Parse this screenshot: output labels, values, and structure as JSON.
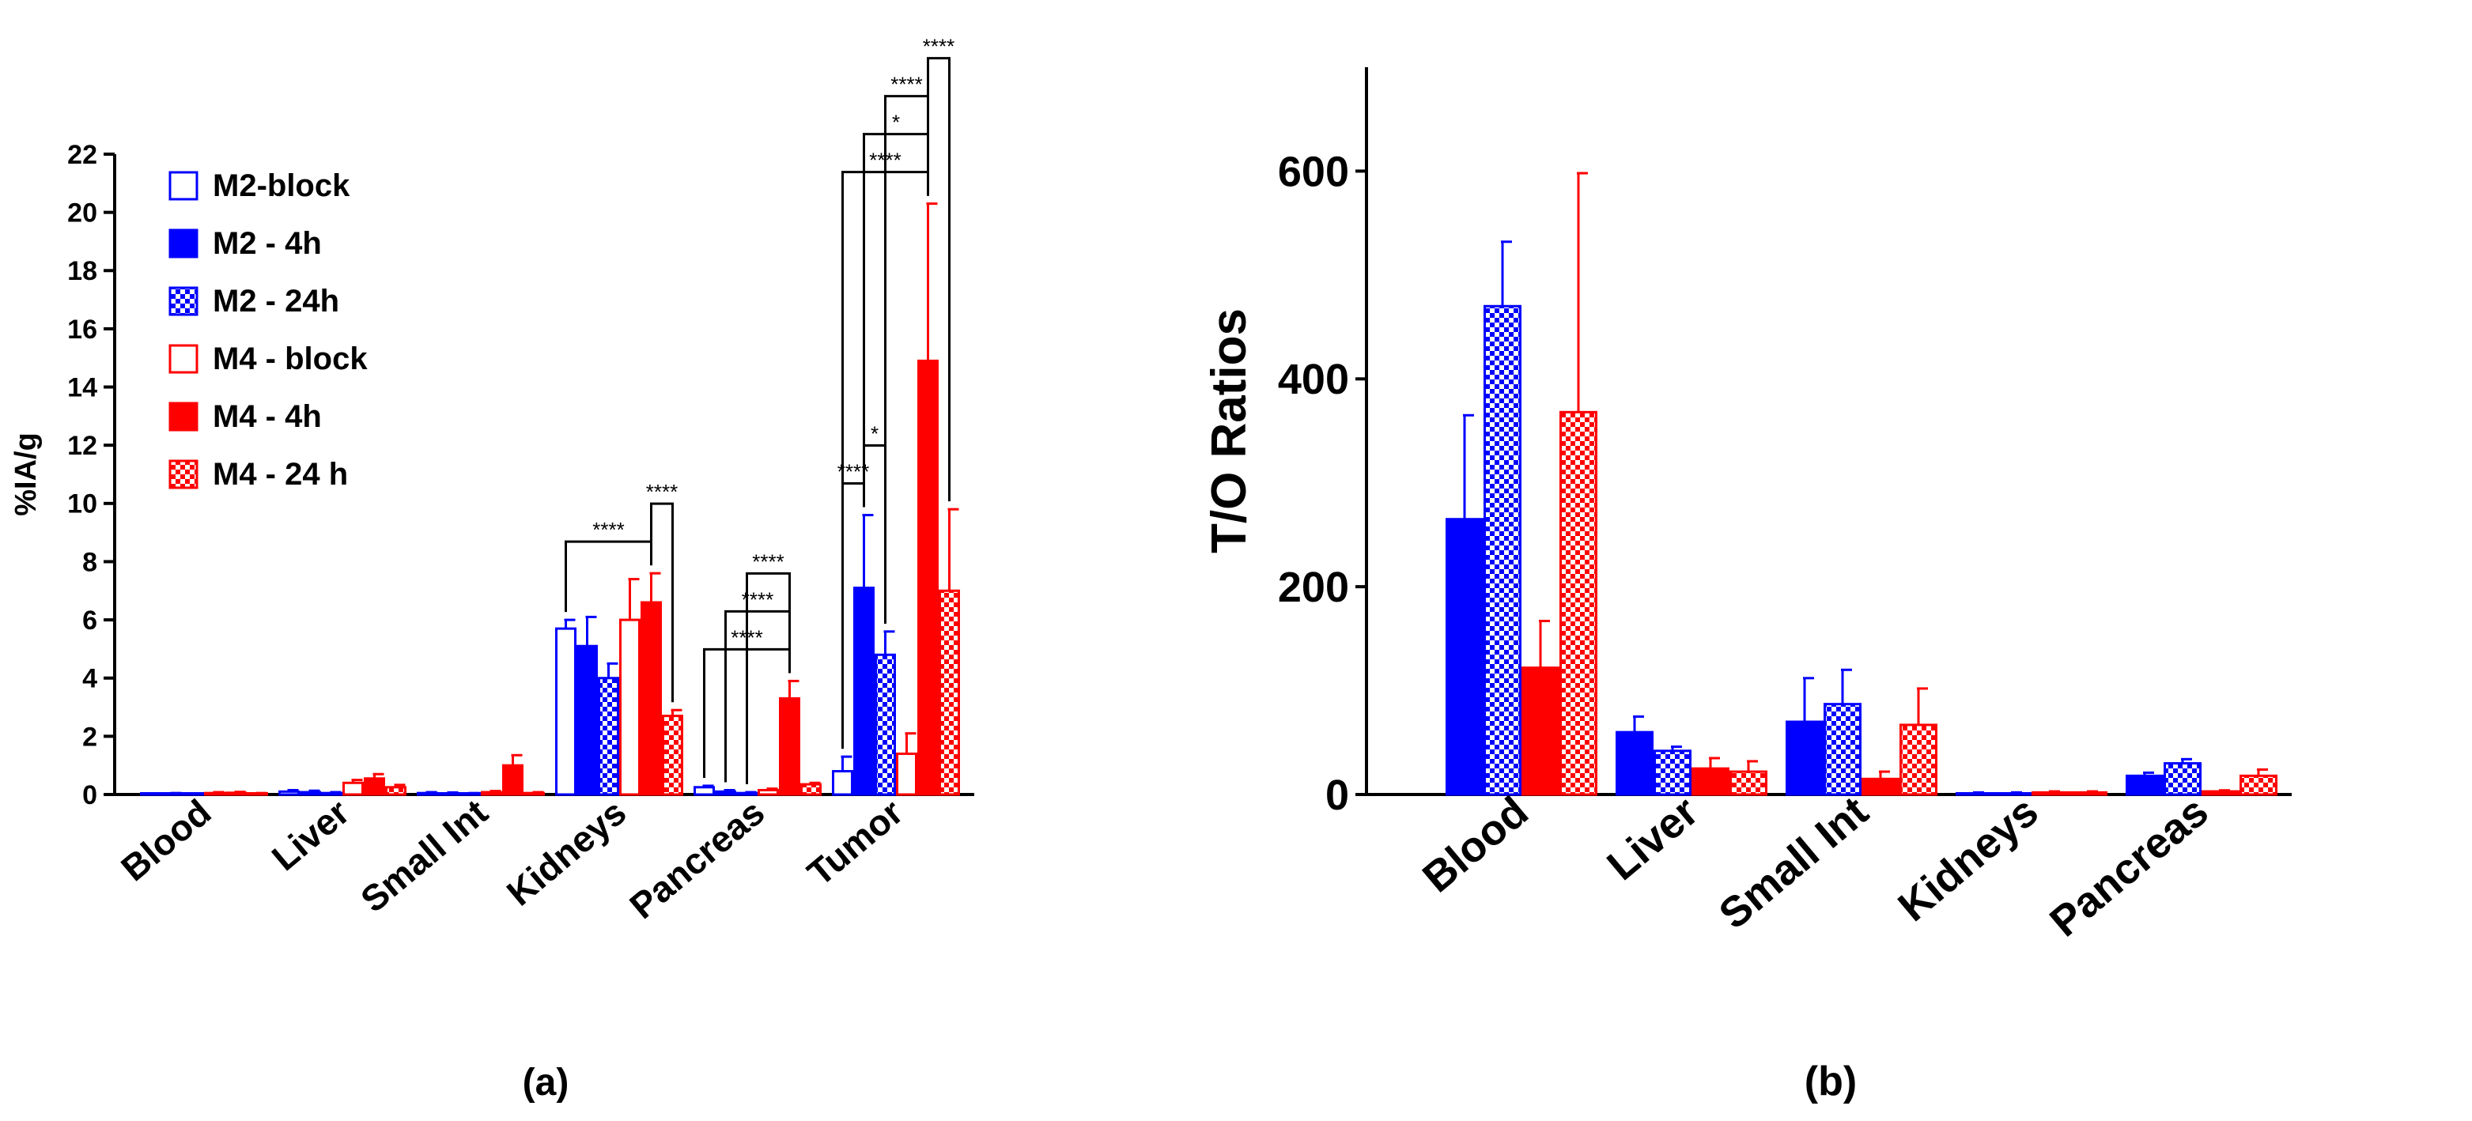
{
  "colors": {
    "blue": "#0000ff",
    "red": "#ff0000",
    "axis": "#000000"
  },
  "chart_data": [
    {
      "type": "bar",
      "panel_label": "(a)",
      "ylabel": "%IA/g",
      "ylim": [
        0,
        22
      ],
      "yticks": [
        "0",
        "2",
        "4",
        "6",
        "8",
        "10",
        "12",
        "14",
        "16",
        "18",
        "20",
        "22"
      ],
      "categories": [
        "Blood",
        "Liver",
        "Small Int",
        "Kidneys",
        "Pancreas",
        "Tumor"
      ],
      "series": [
        {
          "name": "M2-block",
          "color": "blue",
          "pattern": "open",
          "values": [
            0.02,
            0.1,
            0.05,
            5.7,
            0.25,
            0.8
          ],
          "errors": [
            0.02,
            0.05,
            0.03,
            0.3,
            0.05,
            0.5
          ]
        },
        {
          "name": "M2 - 4h",
          "color": "blue",
          "pattern": "solid",
          "values": [
            0.03,
            0.08,
            0.04,
            5.1,
            0.1,
            7.1
          ],
          "errors": [
            0.02,
            0.05,
            0.03,
            1.0,
            0.05,
            2.5
          ]
        },
        {
          "name": "M2 - 24h",
          "color": "blue",
          "pattern": "check",
          "values": [
            0.02,
            0.05,
            0.03,
            4.0,
            0.05,
            4.8
          ],
          "errors": [
            0.01,
            0.03,
            0.02,
            0.5,
            0.03,
            0.8
          ]
        },
        {
          "name": "M4 - block",
          "color": "red",
          "pattern": "open",
          "values": [
            0.05,
            0.4,
            0.08,
            6.0,
            0.15,
            1.4
          ],
          "errors": [
            0.03,
            0.1,
            0.04,
            1.4,
            0.05,
            0.7
          ]
        },
        {
          "name": "M4 - 4h",
          "color": "red",
          "pattern": "solid",
          "values": [
            0.06,
            0.55,
            1.0,
            6.6,
            3.3,
            14.9
          ],
          "errors": [
            0.03,
            0.15,
            0.35,
            1.0,
            0.6,
            5.4
          ]
        },
        {
          "name": "M4 - 24 h",
          "color": "red",
          "pattern": "check",
          "values": [
            0.03,
            0.25,
            0.05,
            2.7,
            0.35,
            7.0
          ],
          "errors": [
            0.02,
            0.08,
            0.03,
            0.2,
            0.05,
            2.8
          ]
        }
      ],
      "significance": [
        {
          "category": 3,
          "from": 0,
          "to": 4,
          "label": "****"
        },
        {
          "category": 3,
          "from": 4,
          "to": 5,
          "label": "****"
        },
        {
          "category": 4,
          "from": 0,
          "to": 4,
          "label": "****"
        },
        {
          "category": 4,
          "from": 1,
          "to": 4,
          "label": "****"
        },
        {
          "category": 4,
          "from": 2,
          "to": 4,
          "label": "****"
        },
        {
          "category": 5,
          "from": 0,
          "to": 1,
          "label": "****"
        },
        {
          "category": 5,
          "from": 1,
          "to": 2,
          "label": "*"
        },
        {
          "category": 5,
          "from": 0,
          "to": 4,
          "label": "****"
        },
        {
          "category": 5,
          "from": 1,
          "to": 4,
          "label": "*"
        },
        {
          "category": 5,
          "from": 2,
          "to": 4,
          "label": "****"
        },
        {
          "category": 5,
          "from": 4,
          "to": 5,
          "label": "****"
        }
      ]
    },
    {
      "type": "bar",
      "panel_label": "(b)",
      "ylabel": "T/O Ratios",
      "ylim": [
        0,
        700
      ],
      "yticks": [
        "0",
        "200",
        "400",
        "600"
      ],
      "categories": [
        "Blood",
        "Liver",
        "Small Int",
        "Kidneys",
        "Pancreas"
      ],
      "series": [
        {
          "name": "M2 - 4h",
          "color": "blue",
          "pattern": "solid",
          "values": [
            265,
            60,
            70,
            1,
            18
          ],
          "errors": [
            100,
            15,
            42,
            1,
            3
          ]
        },
        {
          "name": "M2 - 24h",
          "color": "blue",
          "pattern": "check",
          "values": [
            470,
            42,
            87,
            1,
            30
          ],
          "errors": [
            62,
            4,
            33,
            1,
            4
          ]
        },
        {
          "name": "M4 - 4h",
          "color": "red",
          "pattern": "solid",
          "values": [
            122,
            25,
            15,
            2,
            3
          ],
          "errors": [
            45,
            10,
            7,
            1,
            1
          ]
        },
        {
          "name": "M4 - 24 h",
          "color": "red",
          "pattern": "check",
          "values": [
            368,
            22,
            67,
            2,
            18
          ],
          "errors": [
            230,
            10,
            35,
            1,
            6
          ]
        }
      ]
    }
  ]
}
